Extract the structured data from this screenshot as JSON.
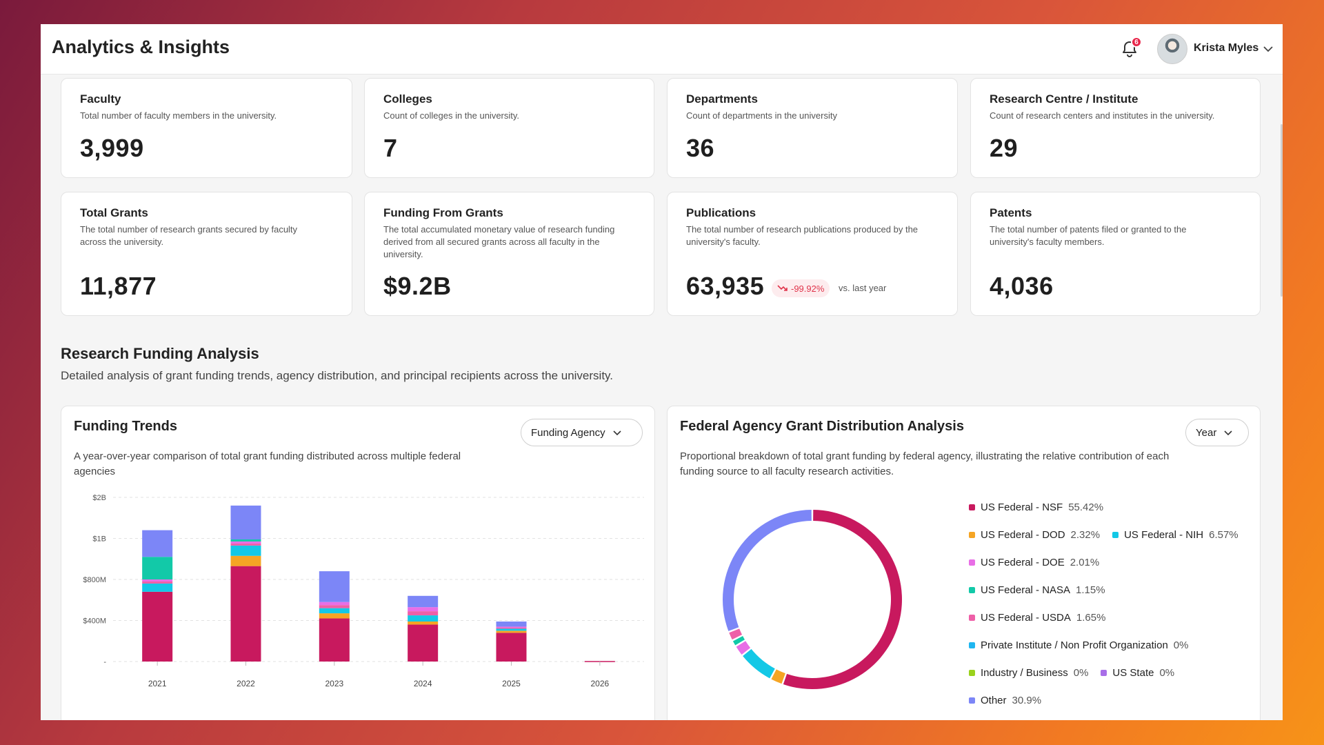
{
  "header": {
    "title": "Analytics & Insights",
    "notification_count": "6",
    "user_name": "Krista Myles"
  },
  "kpis": [
    {
      "title": "Faculty",
      "desc": "Total number of faculty members in the university.",
      "value": "3,999"
    },
    {
      "title": "Colleges",
      "desc": "Count of colleges in the university.",
      "value": "7"
    },
    {
      "title": "Departments",
      "desc": "Count of departments in the university",
      "value": "36"
    },
    {
      "title": "Research Centre / Institute",
      "desc": "Count of research centers and institutes in the university.",
      "value": "29"
    },
    {
      "title": "Total Grants",
      "desc": "The total number of research grants secured by faculty across the university.",
      "value": "11,877"
    },
    {
      "title": "Funding From Grants",
      "desc": "The total accumulated monetary value of research funding derived from all secured grants across all faculty in the university.",
      "value": "$9.2B"
    },
    {
      "title": "Publications",
      "desc": "The total number of research publications produced by the university's faculty.",
      "value": "63,935",
      "trend": "-99.92%",
      "trend_note": "vs. last year"
    },
    {
      "title": "Patents",
      "desc": "The total number of patents filed or granted to the university's faculty members.",
      "value": "4,036"
    }
  ],
  "section": {
    "title": "Research Funding Analysis",
    "desc": "Detailed analysis of grant funding trends, agency distribution, and principal recipients across the university."
  },
  "funding_trends": {
    "title": "Funding Trends",
    "desc": "A year-over-year comparison of total grant funding distributed across multiple federal agencies",
    "dropdown": "Funding Agency"
  },
  "distribution": {
    "title": "Federal Agency Grant Distribution Analysis",
    "desc": "Proportional breakdown of total grant funding by federal agency, illustrating the relative contribution of each funding source to all faculty research activities.",
    "dropdown": "Year"
  },
  "colors": {
    "nsf": "#c8195e",
    "dod": "#f5a524",
    "nih": "#13c8e6",
    "doe": "#e86ee6",
    "nasa": "#12c9a8",
    "usda": "#ee5fa7",
    "private": "#1fb6f0",
    "industry": "#9ad21c",
    "state": "#a86ee8",
    "other": "#7c86f7"
  },
  "chart_data": [
    {
      "type": "bar",
      "stacked": true,
      "categories": [
        "2021",
        "2022",
        "2023",
        "2024",
        "2025",
        "2026"
      ],
      "yticks": [
        "$2B",
        "$1B",
        "$800M",
        "$400M",
        "-"
      ],
      "ylim_millions": [
        0,
        1600
      ],
      "grid": true,
      "series": [
        {
          "key": "nsf",
          "values": [
            680,
            930,
            420,
            360,
            280,
            5
          ]
        },
        {
          "key": "dod",
          "values": [
            0,
            100,
            50,
            30,
            20,
            0
          ]
        },
        {
          "key": "nih",
          "values": [
            80,
            100,
            50,
            60,
            20,
            0
          ]
        },
        {
          "key": "usda",
          "values": [
            20,
            20,
            30,
            40,
            10,
            0
          ]
        },
        {
          "key": "doe",
          "values": [
            20,
            20,
            30,
            40,
            10,
            0
          ]
        },
        {
          "key": "nasa",
          "values": [
            220,
            20,
            0,
            0,
            0,
            0
          ]
        },
        {
          "key": "other",
          "values": [
            260,
            330,
            300,
            110,
            50,
            0
          ]
        }
      ]
    },
    {
      "type": "pie",
      "donut": true,
      "slices": [
        {
          "label": "US Federal - NSF",
          "pct": "55.42%",
          "value": 55.42,
          "key": "nsf"
        },
        {
          "label": "US Federal - DOD",
          "pct": "2.32%",
          "value": 2.32,
          "key": "dod"
        },
        {
          "label": "US Federal - NIH",
          "pct": "6.57%",
          "value": 6.57,
          "key": "nih"
        },
        {
          "label": "US Federal - DOE",
          "pct": "2.01%",
          "value": 2.01,
          "key": "doe"
        },
        {
          "label": "US Federal - NASA",
          "pct": "1.15%",
          "value": 1.15,
          "key": "nasa"
        },
        {
          "label": "US Federal - USDA",
          "pct": "1.65%",
          "value": 1.65,
          "key": "usda"
        },
        {
          "label": "Private Institute / Non Profit Organization",
          "pct": "0%",
          "value": 0,
          "key": "private"
        },
        {
          "label": "Industry / Business",
          "pct": "0%",
          "value": 0,
          "key": "industry"
        },
        {
          "label": "US State",
          "pct": "0%",
          "value": 0,
          "key": "state"
        },
        {
          "label": "Other",
          "pct": "30.9%",
          "value": 30.9,
          "key": "other"
        }
      ]
    }
  ]
}
